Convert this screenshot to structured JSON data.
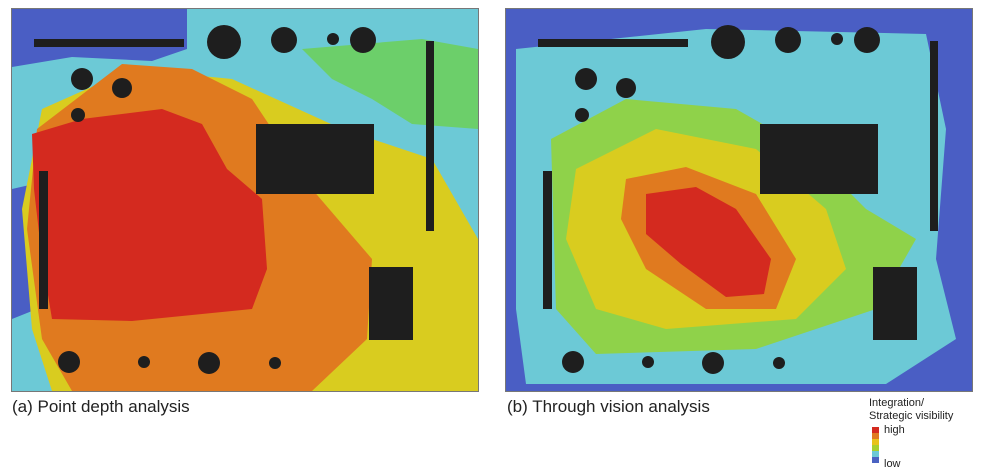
{
  "panels": [
    {
      "caption": "(a) Point depth analysis"
    },
    {
      "caption": "(b) Through vision analysis"
    }
  ],
  "legend": {
    "title_line1": "Integration/",
    "title_line2": "Strategic visibility",
    "high": "high",
    "low": "low",
    "colors": [
      "#d42a1f",
      "#e07a1f",
      "#e8c21a",
      "#a8cf2e",
      "#6cc9d6",
      "#4a62c2"
    ]
  },
  "colors": {
    "red": "#d42a1f",
    "orange": "#e07a1f",
    "yellow": "#d9cc1f",
    "lime": "#8fd24a",
    "green": "#6ccf6a",
    "cyan": "#6cc9d6",
    "blue": "#4a5ec4",
    "obstacle": "#1e1e1e"
  }
}
